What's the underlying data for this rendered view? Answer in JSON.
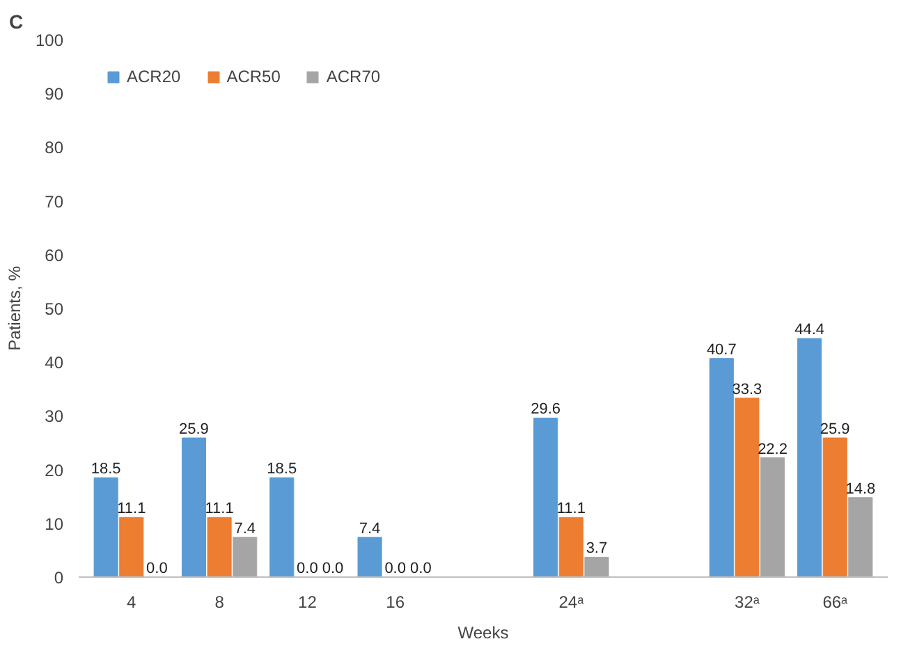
{
  "chart_data": {
    "type": "bar",
    "xlabel": "Weeks",
    "ylabel": "Patients, %",
    "annotations": [
      "C"
    ],
    "categories": [
      "4",
      "8",
      "12",
      "16",
      null,
      "24ᵃ",
      null,
      "32ᵃ",
      "66ᵃ"
    ],
    "series": [
      {
        "name": "ACR20",
        "color": "#5b9bd5",
        "values": [
          18.5,
          25.9,
          18.5,
          7.4,
          null,
          29.6,
          null,
          40.7,
          44.4
        ],
        "value_labels": [
          "18.5",
          "25.9",
          "18.5",
          "7.4",
          null,
          "29.6",
          null,
          "40.7",
          "44.4"
        ]
      },
      {
        "name": "ACR50",
        "color": "#ed7d31",
        "values": [
          11.1,
          11.1,
          0.0,
          0.0,
          null,
          11.1,
          null,
          33.3,
          25.9
        ],
        "value_labels": [
          "11.1",
          "11.1",
          "0.0",
          "0.0",
          null,
          "11.1",
          null,
          "33.3",
          "25.9"
        ]
      },
      {
        "name": "ACR70",
        "color": "#a5a5a5",
        "values": [
          0.0,
          7.4,
          0.0,
          0.0,
          null,
          3.7,
          null,
          22.2,
          14.8
        ],
        "value_labels": [
          "0.0",
          "7.4",
          "0.0",
          "0.0",
          null,
          "3.7",
          null,
          "22.2",
          "14.8"
        ]
      }
    ],
    "ylim": [
      0,
      100
    ],
    "yticks": [
      0,
      10,
      20,
      30,
      40,
      50,
      60,
      70,
      80,
      90,
      100
    ],
    "grid": false,
    "legend": "top left"
  }
}
